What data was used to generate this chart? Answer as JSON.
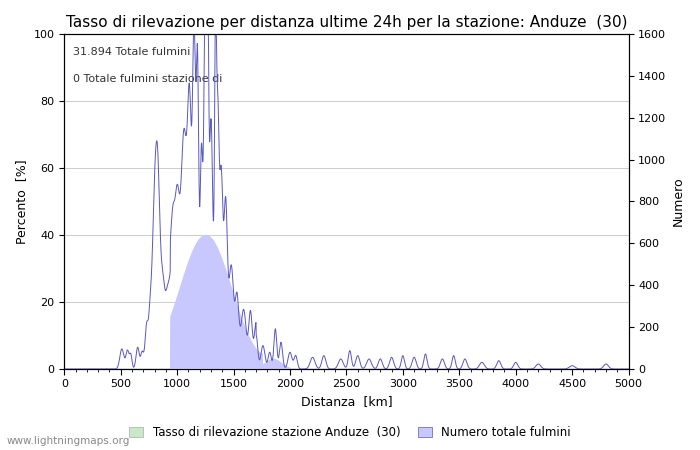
{
  "title": "Tasso di rilevazione per distanza ultime 24h per la stazione: Anduze  (30)",
  "xlabel": "Distanza  [km]",
  "ylabel_left": "Percento  [%]",
  "ylabel_right": "Numero",
  "annotation_line1": "31.894 Totale fulmini",
  "annotation_line2": "0 Totale fulmini stazione di",
  "legend_label1": "Tasso di rilevazione stazione Anduze  (30)",
  "legend_label2": "Numero totale fulmini",
  "watermark": "www.lightningmaps.org",
  "xlim": [
    0,
    5000
  ],
  "ylim_left": [
    0,
    100
  ],
  "ylim_right": [
    0,
    1600
  ],
  "fill_color_percent": "#c8c8ff",
  "fill_color_green": "#c8e8c8",
  "line_color": "#5858c0",
  "background_color": "#ffffff",
  "grid_color": "#cccccc",
  "title_fontsize": 11,
  "axis_fontsize": 9,
  "tick_fontsize": 8,
  "legend_fontsize": 8.5,
  "annotation_fontsize": 8
}
